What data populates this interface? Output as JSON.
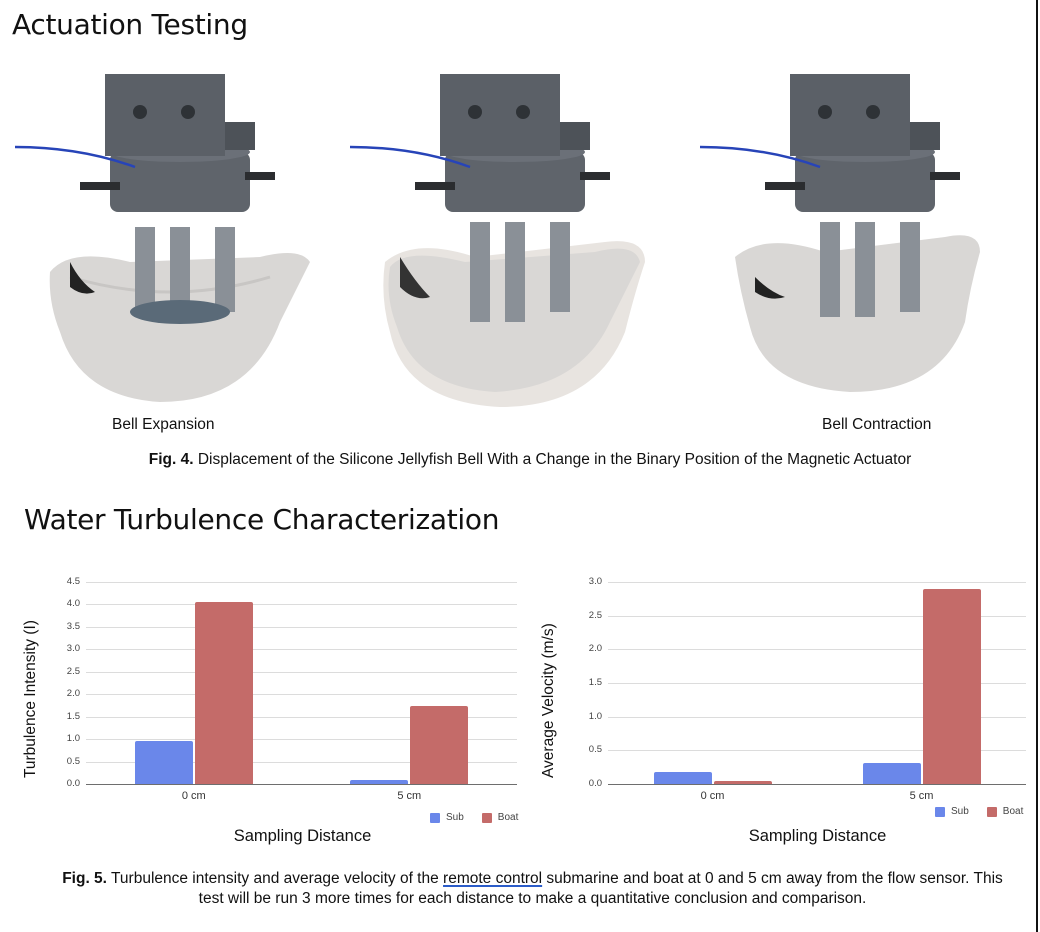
{
  "section1": {
    "title": "Actuation Testing",
    "photos": [
      {
        "name": "bell-expansion-photo",
        "label": "Bell Expansion"
      },
      {
        "name": "bell-transition-photo",
        "label": ""
      },
      {
        "name": "bell-contraction-photo",
        "label": "Bell Contraction"
      }
    ],
    "caption_prefix": "Fig. 4.",
    "caption_text": " Displacement of the Silicone Jellyfish Bell With a Change in the Binary Position of the Magnetic Actuator"
  },
  "section2": {
    "title": "Water Turbulence Characterization",
    "caption_prefix": "Fig. 5.",
    "caption_before_link": " Turbulence intensity and average velocity of the ",
    "caption_link": "remote control",
    "caption_after_link": " submarine and boat at 0 and 5 cm away from the flow sensor. This test will be run 3 more times for each distance to make a quantitative conclusion and comparison."
  },
  "colors": {
    "sub": "#6a87ea",
    "boat": "#c46b69"
  },
  "chart_data": [
    {
      "type": "bar",
      "title": "",
      "xlabel": "Sampling Distance",
      "ylabel": "Turbulence Intensity (I)",
      "categories": [
        "0 cm",
        "5 cm"
      ],
      "series": [
        {
          "name": "Sub",
          "values": [
            0.96,
            0.09
          ]
        },
        {
          "name": "Boat",
          "values": [
            4.05,
            1.74
          ]
        }
      ],
      "yticks": [
        "0.0",
        "0.5",
        "1.0",
        "1.5",
        "2.0",
        "2.5",
        "3.0",
        "3.5",
        "4.0",
        "4.5"
      ],
      "ylim": [
        0,
        4.5
      ],
      "grid": true,
      "legend_position": "bottom-right",
      "legend": [
        "Sub",
        "Boat"
      ]
    },
    {
      "type": "bar",
      "title": "",
      "xlabel": "Sampling Distance",
      "ylabel": "Average Velocity (m/s)",
      "categories": [
        "0 cm",
        "5 cm"
      ],
      "series": [
        {
          "name": "Sub",
          "values": [
            0.18,
            0.31
          ]
        },
        {
          "name": "Boat",
          "values": [
            0.05,
            2.9
          ]
        }
      ],
      "yticks": [
        "0.0",
        "0.5",
        "1.0",
        "1.5",
        "2.0",
        "2.5",
        "3.0"
      ],
      "ylim": [
        0,
        3.0
      ],
      "grid": true,
      "legend_position": "bottom-right",
      "legend": [
        "Sub",
        "Boat"
      ]
    }
  ]
}
